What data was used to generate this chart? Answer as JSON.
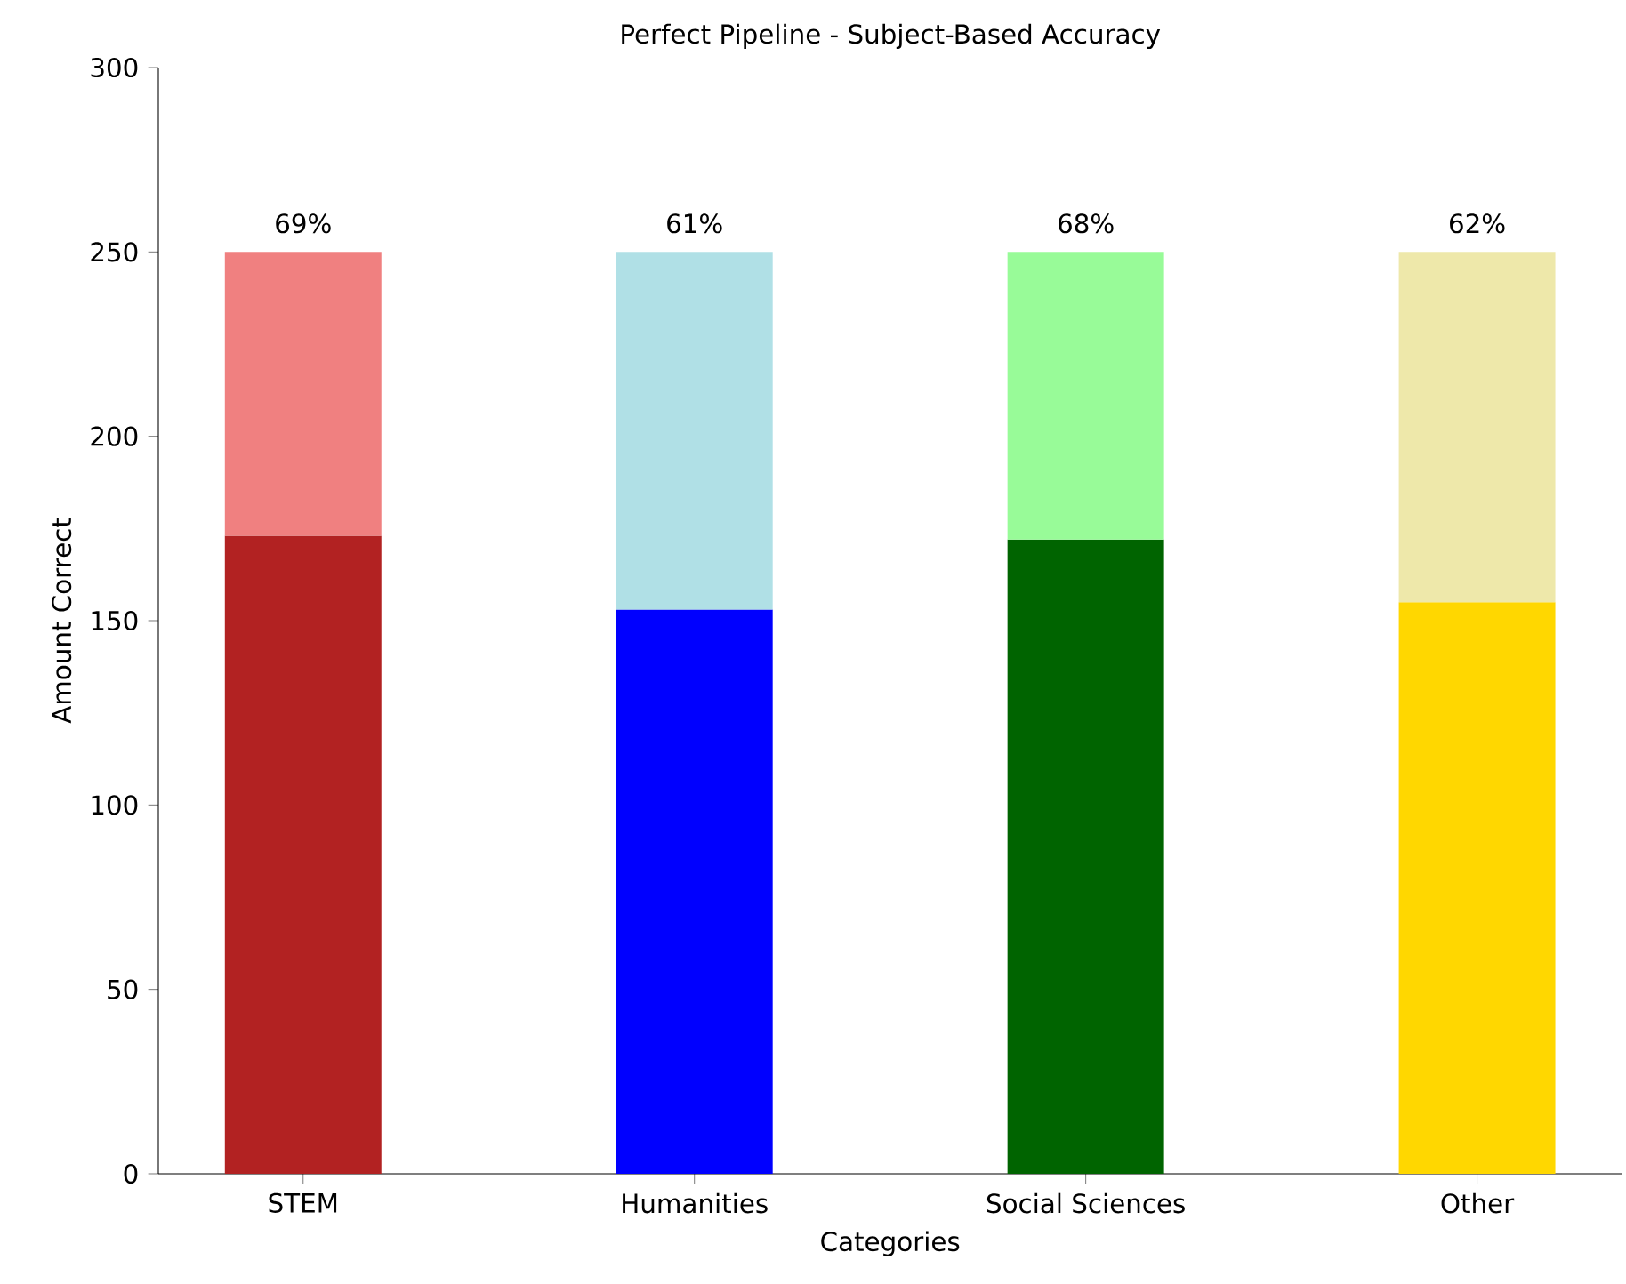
{
  "chart_data": {
    "type": "bar",
    "title": "Perfect Pipeline - Subject-Based Accuracy",
    "xlabel": "Categories",
    "ylabel": "Amount Correct",
    "categories": [
      "STEM",
      "Humanities",
      "Social Sciences",
      "Other"
    ],
    "stacked": true,
    "series": [
      {
        "values": [
          173,
          153,
          172,
          155
        ],
        "colors": [
          "#b22222",
          "#0000ff",
          "#006400",
          "#ffd700"
        ]
      },
      {
        "values": [
          77,
          97,
          78,
          95
        ],
        "colors": [
          "#f08080",
          "#b0e0e6",
          "#98fb98",
          "#eee8aa"
        ]
      }
    ],
    "ylim": [
      0,
      300
    ],
    "yticks": [
      0,
      50,
      100,
      150,
      200,
      250,
      300
    ],
    "grid": false,
    "annotations": [
      {
        "text": "69%",
        "x": "STEM",
        "y": 250
      },
      {
        "text": "61%",
        "x": "Humanities",
        "y": 250
      },
      {
        "text": "68%",
        "x": "Social Sciences",
        "y": 250
      },
      {
        "text": "62%",
        "x": "Other",
        "y": 250
      }
    ]
  }
}
